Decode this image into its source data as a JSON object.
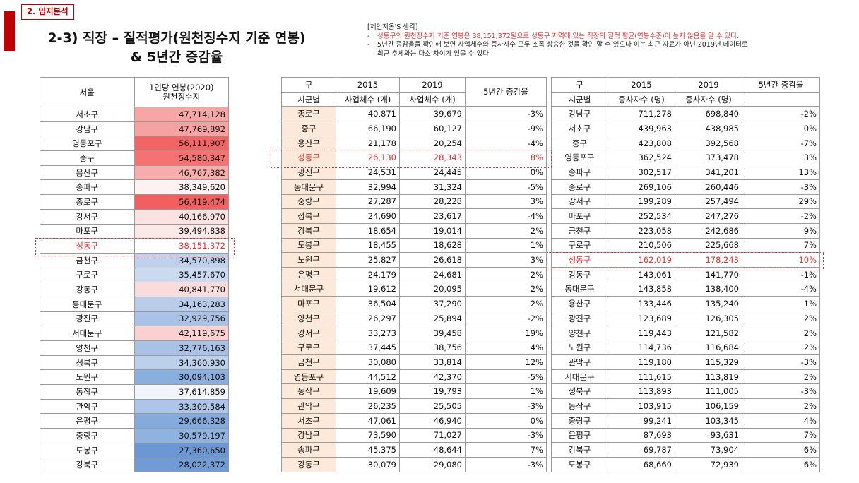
{
  "section_tag": "2. 입지분석",
  "title_line1": "2-3) 직장 – 질적평가(원천징수지 기준 연봉)",
  "title_line2": "& 5년간 증감율",
  "notes": {
    "heading": "[체인지온'S 생각]",
    "bullet1": "성동구의 원천징수지 기준 연봉은 38,151,372원으로 성동구 지역에 있는 직장의 질적 평균(연봉수준)이 높지 않음을 알 수 있다.",
    "bullet2a": "5년간 증감율을 확인해 보면 사업체수와 종사자수 모두 소폭 상승한 것을 확인 할 수 있으나 이는 최근 자료가 아닌 2019년 데이터로",
    "bullet2b": "최근 추세와는 다소 차이가 있을 수 있다.",
    "dash": "-"
  },
  "salary_table": {
    "col_region": "서울",
    "col_salary_1": "1인당 연봉(2020)",
    "col_salary_2": "원천징수지",
    "rows": [
      {
        "gu": "서초구",
        "salary": "47,714,128",
        "bg": "#f7a5a5"
      },
      {
        "gu": "강남구",
        "salary": "47,769,892",
        "bg": "#f7a2a2"
      },
      {
        "gu": "영등포구",
        "salary": "56,111,907",
        "bg": "#f26565"
      },
      {
        "gu": "중구",
        "salary": "54,580,347",
        "bg": "#f47272"
      },
      {
        "gu": "용산구",
        "salary": "46,767,382",
        "bg": "#f8acac"
      },
      {
        "gu": "송파구",
        "salary": "38,349,620",
        "bg": "#fdf1f1"
      },
      {
        "gu": "종로구",
        "salary": "56,419,474",
        "bg": "#f06060"
      },
      {
        "gu": "강서구",
        "salary": "40,166,970",
        "bg": "#fce1e1"
      },
      {
        "gu": "마포구",
        "salary": "39,494,838",
        "bg": "#fde8e8"
      },
      {
        "gu": "성동구",
        "salary": "38,151,372",
        "bg": "#ffffff"
      },
      {
        "gu": "금천구",
        "salary": "34,570,898",
        "bg": "#bfd1ec"
      },
      {
        "gu": "구로구",
        "salary": "35,457,670",
        "bg": "#cbdaf0"
      },
      {
        "gu": "강동구",
        "salary": "40,841,770",
        "bg": "#fbdcdc"
      },
      {
        "gu": "동대문구",
        "salary": "34,163,283",
        "bg": "#b9cdea"
      },
      {
        "gu": "광진구",
        "salary": "32,929,756",
        "bg": "#aac2e6"
      },
      {
        "gu": "서대문구",
        "salary": "42,119,675",
        "bg": "#fad0d0"
      },
      {
        "gu": "양천구",
        "salary": "32,776,163",
        "bg": "#a8c1e5"
      },
      {
        "gu": "성북구",
        "salary": "34,360,930",
        "bg": "#bccfeb"
      },
      {
        "gu": "노원구",
        "salary": "30,094,103",
        "bg": "#8aaedd"
      },
      {
        "gu": "동작구",
        "salary": "37,614,859",
        "bg": "#f1f5fb"
      },
      {
        "gu": "관악구",
        "salary": "33,309,584",
        "bg": "#aec5e7"
      },
      {
        "gu": "은평구",
        "salary": "29,666,328",
        "bg": "#85aadc"
      },
      {
        "gu": "중랑구",
        "salary": "30,579,197",
        "bg": "#8fb2df"
      },
      {
        "gu": "도봉구",
        "salary": "27,360,650",
        "bg": "#6b97d4"
      },
      {
        "gu": "강북구",
        "salary": "28,022,372",
        "bg": "#709bd5"
      }
    ]
  },
  "business_table": {
    "h_gu": "구",
    "h_2015": "2015",
    "h_2019": "2019",
    "h_rate": "5년간 증감율",
    "h_sub_gu": "시군별",
    "h_sub_2015": "사업체수 (개)",
    "h_sub_2019": "사업체수 (개)",
    "rows": [
      {
        "gu": "종로구",
        "y2015": "40,871",
        "y2019": "39,679",
        "rate": "-3%"
      },
      {
        "gu": "중구",
        "y2015": "66,190",
        "y2019": "60,127",
        "rate": "-9%"
      },
      {
        "gu": "용산구",
        "y2015": "21,178",
        "y2019": "20,254",
        "rate": "-4%"
      },
      {
        "gu": "성동구",
        "y2015": "26,130",
        "y2019": "28,343",
        "rate": "8%"
      },
      {
        "gu": "광진구",
        "y2015": "24,531",
        "y2019": "24,445",
        "rate": "0%"
      },
      {
        "gu": "동대문구",
        "y2015": "32,994",
        "y2019": "31,324",
        "rate": "-5%"
      },
      {
        "gu": "중랑구",
        "y2015": "27,287",
        "y2019": "28,228",
        "rate": "3%"
      },
      {
        "gu": "성북구",
        "y2015": "24,690",
        "y2019": "23,617",
        "rate": "-4%"
      },
      {
        "gu": "강북구",
        "y2015": "18,654",
        "y2019": "19,014",
        "rate": "2%"
      },
      {
        "gu": "도봉구",
        "y2015": "18,455",
        "y2019": "18,628",
        "rate": "1%"
      },
      {
        "gu": "노원구",
        "y2015": "25,827",
        "y2019": "26,618",
        "rate": "3%"
      },
      {
        "gu": "은평구",
        "y2015": "24,179",
        "y2019": "24,681",
        "rate": "2%"
      },
      {
        "gu": "서대문구",
        "y2015": "19,612",
        "y2019": "20,095",
        "rate": "2%"
      },
      {
        "gu": "마포구",
        "y2015": "36,504",
        "y2019": "37,290",
        "rate": "2%"
      },
      {
        "gu": "양천구",
        "y2015": "26,297",
        "y2019": "25,894",
        "rate": "-2%"
      },
      {
        "gu": "강서구",
        "y2015": "33,273",
        "y2019": "39,458",
        "rate": "19%"
      },
      {
        "gu": "구로구",
        "y2015": "37,445",
        "y2019": "38,756",
        "rate": "4%"
      },
      {
        "gu": "금천구",
        "y2015": "30,080",
        "y2019": "33,814",
        "rate": "12%"
      },
      {
        "gu": "영등포구",
        "y2015": "44,512",
        "y2019": "42,370",
        "rate": "-5%"
      },
      {
        "gu": "동작구",
        "y2015": "19,609",
        "y2019": "19,793",
        "rate": "1%"
      },
      {
        "gu": "관악구",
        "y2015": "26,235",
        "y2019": "25,505",
        "rate": "-3%"
      },
      {
        "gu": "서초구",
        "y2015": "47,061",
        "y2019": "46,940",
        "rate": "0%"
      },
      {
        "gu": "강남구",
        "y2015": "73,590",
        "y2019": "71,027",
        "rate": "-3%"
      },
      {
        "gu": "송파구",
        "y2015": "45,375",
        "y2019": "48,644",
        "rate": "7%"
      },
      {
        "gu": "강동구",
        "y2015": "30,079",
        "y2019": "29,080",
        "rate": "-3%"
      }
    ]
  },
  "employee_table": {
    "h_gu": "구",
    "h_2015": "2015",
    "h_2019": "2019",
    "h_rate": "5년간 증감율",
    "h_sub_gu": "시군별",
    "h_sub_2015": "종사자수 (명)",
    "h_sub_2019": "종사자수 (명)",
    "rows": [
      {
        "gu": "강남구",
        "y2015": "711,278",
        "y2019": "698,840",
        "rate": "-2%"
      },
      {
        "gu": "서초구",
        "y2015": "439,963",
        "y2019": "438,985",
        "rate": "0%"
      },
      {
        "gu": "중구",
        "y2015": "423,808",
        "y2019": "392,568",
        "rate": "-7%"
      },
      {
        "gu": "영등포구",
        "y2015": "362,524",
        "y2019": "373,478",
        "rate": "3%"
      },
      {
        "gu": "송파구",
        "y2015": "302,517",
        "y2019": "341,201",
        "rate": "13%"
      },
      {
        "gu": "종로구",
        "y2015": "269,106",
        "y2019": "260,446",
        "rate": "-3%"
      },
      {
        "gu": "강서구",
        "y2015": "199,289",
        "y2019": "257,494",
        "rate": "29%"
      },
      {
        "gu": "마포구",
        "y2015": "252,534",
        "y2019": "247,276",
        "rate": "-2%"
      },
      {
        "gu": "금천구",
        "y2015": "223,058",
        "y2019": "242,686",
        "rate": "9%"
      },
      {
        "gu": "구로구",
        "y2015": "210,506",
        "y2019": "225,668",
        "rate": "7%"
      },
      {
        "gu": "성동구",
        "y2015": "162,019",
        "y2019": "178,243",
        "rate": "10%"
      },
      {
        "gu": "강동구",
        "y2015": "143,061",
        "y2019": "141,770",
        "rate": "-1%"
      },
      {
        "gu": "동대문구",
        "y2015": "143,858",
        "y2019": "138,400",
        "rate": "-4%"
      },
      {
        "gu": "용산구",
        "y2015": "133,446",
        "y2019": "135,240",
        "rate": "1%"
      },
      {
        "gu": "광진구",
        "y2015": "123,689",
        "y2019": "126,305",
        "rate": "2%"
      },
      {
        "gu": "양천구",
        "y2015": "119,443",
        "y2019": "121,582",
        "rate": "2%"
      },
      {
        "gu": "노원구",
        "y2015": "114,736",
        "y2019": "116,684",
        "rate": "2%"
      },
      {
        "gu": "관악구",
        "y2015": "119,180",
        "y2019": "115,329",
        "rate": "-3%"
      },
      {
        "gu": "서대문구",
        "y2015": "111,615",
        "y2019": "113,819",
        "rate": "2%"
      },
      {
        "gu": "성북구",
        "y2015": "113,893",
        "y2019": "111,005",
        "rate": "-3%"
      },
      {
        "gu": "동작구",
        "y2015": "103,915",
        "y2019": "106,159",
        "rate": "2%"
      },
      {
        "gu": "중랑구",
        "y2015": "99,241",
        "y2019": "103,345",
        "rate": "4%"
      },
      {
        "gu": "은평구",
        "y2015": "87,693",
        "y2019": "93,631",
        "rate": "7%"
      },
      {
        "gu": "강북구",
        "y2015": "69,787",
        "y2019": "73,904",
        "rate": "6%"
      },
      {
        "gu": "도봉구",
        "y2015": "68,669",
        "y2019": "72,939",
        "rate": "6%"
      }
    ]
  },
  "highlight_gu": "성동구",
  "colors": {
    "accent": "#c00000",
    "highlight": "#e03030",
    "district_fill": "#fde9d9"
  }
}
